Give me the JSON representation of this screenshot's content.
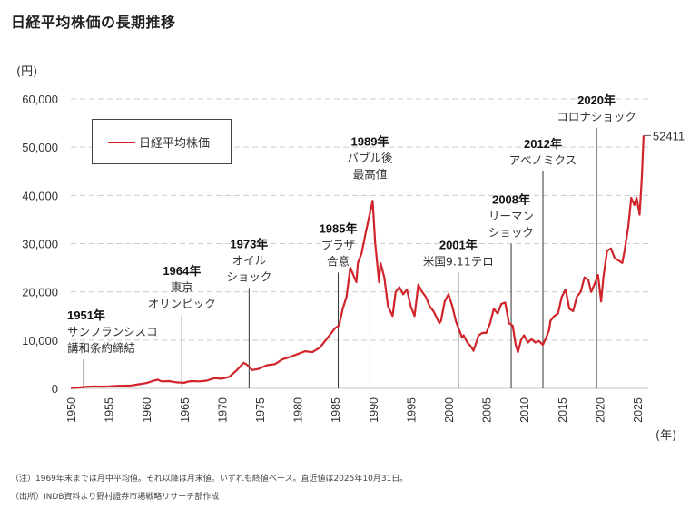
{
  "title": "日経平均株価の長期推移",
  "colors": {
    "series": "#d0242a",
    "grid": "#cccccc",
    "event_line": "#333333"
  },
  "notes": [
    "（注）1969年末までは月中平均値。それ以降は月末値。いずれも終値ベース。直近値は2025年10月31日。",
    "（出所）INDB資料より野村證券市場戦略リサーチ部作成"
  ],
  "chart_data": {
    "type": "line",
    "title": "日経平均株価の長期推移",
    "xlabel": "(年)",
    "ylabel": "(円)",
    "xlim": [
      1950,
      2025.9
    ],
    "ylim": [
      0,
      60000
    ],
    "grid": true,
    "legend": {
      "entries": [
        "日経平均株価"
      ],
      "position": "top-left"
    },
    "y_ticks": [
      "0",
      "10,000",
      "20,000",
      "30,000",
      "40,000",
      "50,000",
      "60,000"
    ],
    "y_tick_values": [
      0,
      10000,
      20000,
      30000,
      40000,
      50000,
      60000
    ],
    "x_ticks": [
      "1950",
      "1955",
      "1960",
      "1965",
      "1970",
      "1975",
      "1980",
      "1985",
      "1990",
      "1995",
      "2000",
      "2005",
      "2010",
      "2015",
      "2020",
      "2025"
    ],
    "x_tick_values": [
      1950,
      1955,
      1960,
      1965,
      1970,
      1975,
      1980,
      1985,
      1990,
      1995,
      2000,
      2005,
      2010,
      2015,
      2020,
      2025
    ],
    "series": [
      {
        "name": "日経平均株価",
        "x": [
          1950.0,
          1951.0,
          1952.0,
          1953.0,
          1954.0,
          1955.0,
          1956.0,
          1957.0,
          1958.0,
          1959.0,
          1960.0,
          1961.0,
          1961.5,
          1962.0,
          1963.0,
          1964.0,
          1965.0,
          1965.5,
          1966.0,
          1967.0,
          1968.0,
          1969.0,
          1970.0,
          1971.0,
          1972.0,
          1972.9,
          1973.3,
          1974.0,
          1974.8,
          1975.5,
          1976.0,
          1977.0,
          1978.0,
          1979.0,
          1980.0,
          1981.0,
          1982.0,
          1983.0,
          1984.0,
          1985.0,
          1985.5,
          1986.0,
          1986.5,
          1987.0,
          1987.8,
          1988.0,
          1988.5,
          1989.0,
          1989.95,
          1990.3,
          1990.8,
          1991.0,
          1991.5,
          1992.0,
          1992.6,
          1993.0,
          1993.5,
          1994.0,
          1994.5,
          1995.0,
          1995.5,
          1996.0,
          1996.5,
          1997.0,
          1997.5,
          1998.0,
          1998.8,
          1999.0,
          1999.5,
          2000.0,
          2000.5,
          2001.0,
          2001.8,
          2002.0,
          2002.5,
          2003.0,
          2003.3,
          2004.0,
          2004.5,
          2005.0,
          2005.5,
          2006.0,
          2006.5,
          2007.0,
          2007.5,
          2008.0,
          2008.5,
          2008.9,
          2009.2,
          2009.6,
          2010.0,
          2010.5,
          2011.0,
          2011.5,
          2012.0,
          2012.5,
          2012.9,
          2013.3,
          2013.5,
          2014.0,
          2014.5,
          2015.0,
          2015.5,
          2016.0,
          2016.5,
          2017.0,
          2017.5,
          2018.0,
          2018.5,
          2018.9,
          2019.3,
          2019.8,
          2020.2,
          2020.5,
          2021.0,
          2021.5,
          2022.0,
          2022.5,
          2023.0,
          2023.3,
          2023.8,
          2024.2,
          2024.6,
          2024.9,
          2025.3,
          2025.6,
          2025.83
        ],
        "y": [
          100,
          170,
          300,
          400,
          350,
          400,
          500,
          550,
          600,
          850,
          1100,
          1600,
          1800,
          1450,
          1500,
          1250,
          1150,
          1400,
          1500,
          1450,
          1600,
          2100,
          2000,
          2400,
          3800,
          5300,
          4900,
          3800,
          4000,
          4500,
          4800,
          5000,
          6000,
          6500,
          7100,
          7700,
          7500,
          8500,
          10500,
          12500,
          13000,
          16500,
          19000,
          25000,
          22000,
          26000,
          28000,
          32000,
          38900,
          30000,
          22000,
          26000,
          23000,
          17000,
          15000,
          20000,
          21000,
          19500,
          20500,
          17000,
          15000,
          21500,
          20000,
          19000,
          17000,
          16000,
          13500,
          14000,
          18000,
          19500,
          17000,
          13800,
          10500,
          11000,
          9500,
          8600,
          7800,
          11000,
          11500,
          11500,
          13500,
          16500,
          15500,
          17500,
          17800,
          13500,
          13000,
          9000,
          7500,
          10000,
          11000,
          9500,
          10200,
          9500,
          9800,
          9000,
          10400,
          12000,
          14000,
          15000,
          15500,
          19000,
          20500,
          16500,
          16000,
          19000,
          20000,
          23000,
          22500,
          20000,
          21500,
          23500,
          18000,
          23000,
          28500,
          29000,
          27000,
          26500,
          26000,
          28500,
          33500,
          39500,
          38000,
          39500,
          36000,
          44000,
          52411
        ]
      }
    ],
    "last_value_label": "52411",
    "events": [
      {
        "year_label": "1951年",
        "lines": [
          "サンフランシスコ",
          "講和条約締結"
        ],
        "x": 1951.7,
        "line_top": 6000
      },
      {
        "year_label": "1964年",
        "lines": [
          "東京",
          "オリンピック"
        ],
        "x": 1964.7,
        "line_top": 15200
      },
      {
        "year_label": "1973年",
        "lines": [
          "オイル",
          "ショック"
        ],
        "x": 1973.6,
        "line_top": 20800
      },
      {
        "year_label": "1985年",
        "lines": [
          "プラザ",
          "合意"
        ],
        "x": 1985.4,
        "line_top": 24000
      },
      {
        "year_label": "1989年",
        "lines": [
          "バブル後",
          "最高値"
        ],
        "x": 1989.6,
        "line_top": 42000
      },
      {
        "year_label": "2001年",
        "lines": [
          "米国9.11テロ"
        ],
        "x": 2001.3,
        "line_top": 24000
      },
      {
        "year_label": "2008年",
        "lines": [
          "リーマン",
          "ショック"
        ],
        "x": 2008.3,
        "line_top": 30000
      },
      {
        "year_label": "2012年",
        "lines": [
          "アベノミクス"
        ],
        "x": 2012.5,
        "line_top": 45000
      },
      {
        "year_label": "2020年",
        "lines": [
          "コロナショック"
        ],
        "x": 2019.6,
        "line_top": 54000
      }
    ]
  }
}
